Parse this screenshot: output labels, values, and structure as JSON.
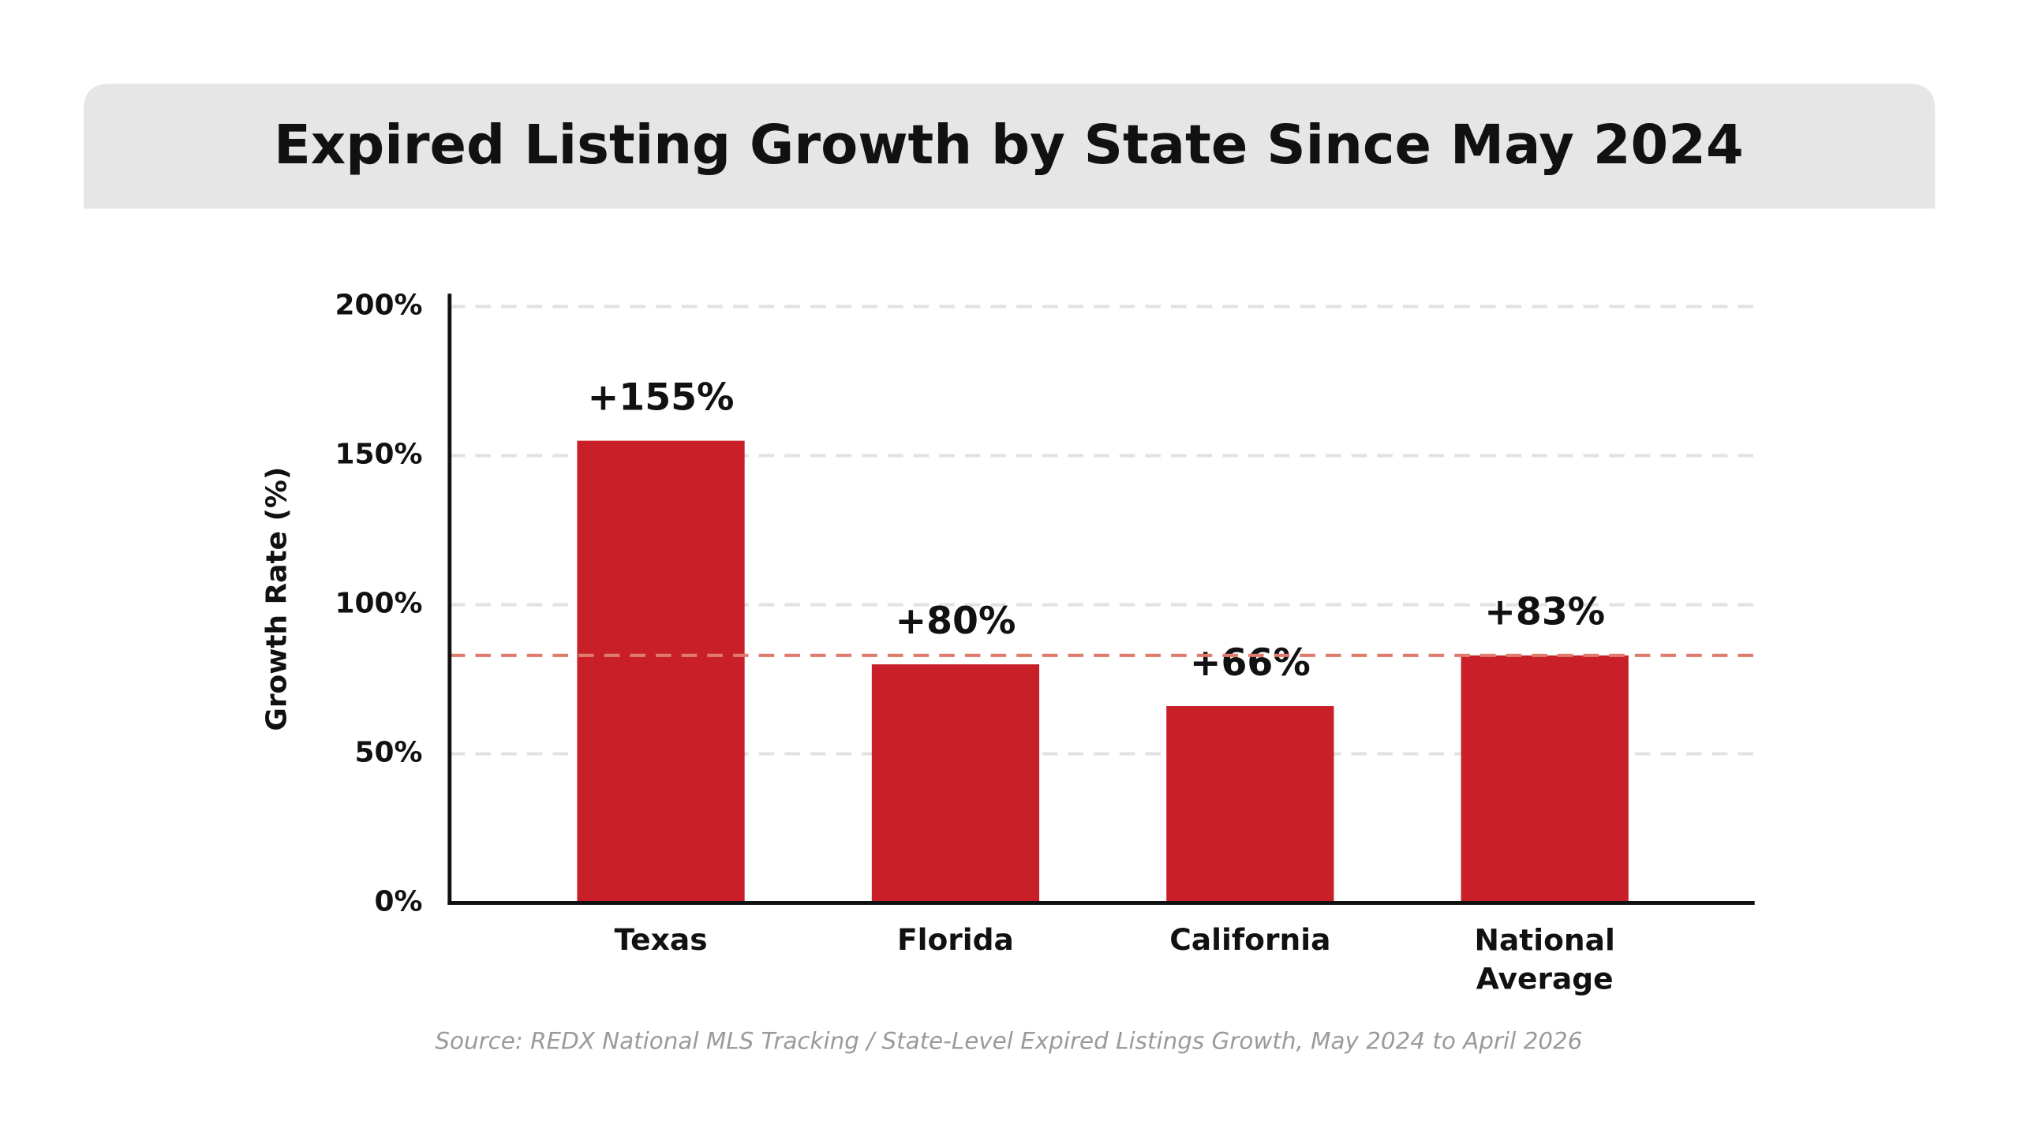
{
  "chart_data": {
    "type": "bar",
    "title": "Expired Listing Growth by State Since May 2024",
    "y_label": "Growth Rate (%)",
    "categories": [
      "Texas",
      "Florida",
      "California",
      "National Average"
    ],
    "values": [
      155,
      80,
      66,
      83
    ],
    "value_labels": [
      "+155%",
      "+80%",
      "+66%",
      "+83%"
    ],
    "color": "#c91f28",
    "ylim": [
      0,
      200
    ],
    "yticks": [
      {
        "value": 0,
        "label": "0%"
      },
      {
        "value": 50,
        "label": "50%"
      },
      {
        "value": 100,
        "label": "100%"
      },
      {
        "value": 150,
        "label": "150%"
      },
      {
        "value": 200,
        "label": "200%"
      }
    ],
    "grid": true,
    "reference_line": {
      "value": 83,
      "color": "#e07b6e"
    },
    "source": "Source: REDX National MLS Tracking / State-Level Expired Listings Growth, May 2024 to April 2026"
  }
}
